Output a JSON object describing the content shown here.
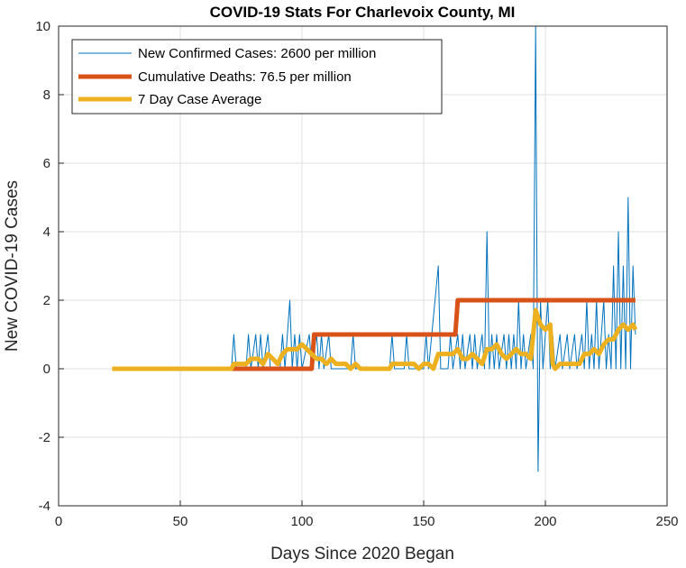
{
  "chart_data": {
    "type": "line",
    "title": "COVID-19 Stats For Charlevoix County, MI",
    "xlabel": "Days Since 2020 Began",
    "ylabel": "New COVID-19 Cases",
    "xlim": [
      0,
      250
    ],
    "ylim": [
      -4,
      10
    ],
    "xticks": [
      0,
      50,
      100,
      150,
      200,
      250
    ],
    "yticks": [
      -4,
      -2,
      0,
      2,
      4,
      6,
      8,
      10
    ],
    "grid": true,
    "legend_position": "top-left",
    "series": [
      {
        "name": "New Confirmed Cases: 2600 per million",
        "color": "#0072BD",
        "line_width": 1,
        "points": [
          [
            22,
            0
          ],
          [
            71,
            0
          ],
          [
            72,
            1
          ],
          [
            73,
            0
          ],
          [
            77,
            0
          ],
          [
            78,
            1
          ],
          [
            79,
            0
          ],
          [
            81,
            1
          ],
          [
            82,
            0
          ],
          [
            83,
            1
          ],
          [
            84,
            0
          ],
          [
            86,
            1
          ],
          [
            87,
            0
          ],
          [
            91,
            0
          ],
          [
            92,
            1
          ],
          [
            93,
            0
          ],
          [
            95,
            2
          ],
          [
            96,
            0
          ],
          [
            97,
            1
          ],
          [
            98,
            0
          ],
          [
            99,
            1
          ],
          [
            100,
            0
          ],
          [
            103,
            1
          ],
          [
            104,
            0
          ],
          [
            106,
            1
          ],
          [
            107,
            0
          ],
          [
            108,
            1
          ],
          [
            109,
            0
          ],
          [
            111,
            1
          ],
          [
            112,
            0
          ],
          [
            120,
            0
          ],
          [
            121,
            1
          ],
          [
            122,
            0
          ],
          [
            136,
            0
          ],
          [
            137,
            1
          ],
          [
            138,
            0
          ],
          [
            142,
            0
          ],
          [
            143,
            1
          ],
          [
            144,
            0
          ],
          [
            150,
            0
          ],
          [
            151,
            1
          ],
          [
            152,
            0
          ],
          [
            156,
            3
          ],
          [
            157,
            0
          ],
          [
            160,
            0
          ],
          [
            161,
            1
          ],
          [
            162,
            0
          ],
          [
            164,
            1
          ],
          [
            165,
            0
          ],
          [
            166,
            1
          ],
          [
            167,
            0
          ],
          [
            169,
            1
          ],
          [
            170,
            0
          ],
          [
            171,
            1
          ],
          [
            172,
            0
          ],
          [
            174,
            1
          ],
          [
            175,
            0
          ],
          [
            176,
            4
          ],
          [
            177,
            0
          ],
          [
            178,
            1
          ],
          [
            179,
            0
          ],
          [
            180,
            1
          ],
          [
            181,
            0
          ],
          [
            183,
            1
          ],
          [
            184,
            0
          ],
          [
            185,
            1
          ],
          [
            186,
            0
          ],
          [
            187,
            1
          ],
          [
            188,
            0
          ],
          [
            189,
            2
          ],
          [
            190,
            0
          ],
          [
            191,
            1
          ],
          [
            192,
            0
          ],
          [
            194,
            1
          ],
          [
            195,
            0
          ],
          [
            196,
            10
          ],
          [
            197,
            -3
          ],
          [
            198,
            2
          ],
          [
            199,
            0
          ],
          [
            201,
            2
          ],
          [
            202,
            0
          ],
          [
            203,
            1
          ],
          [
            204,
            0
          ],
          [
            206,
            1
          ],
          [
            207,
            0
          ],
          [
            209,
            1
          ],
          [
            210,
            0
          ],
          [
            212,
            1
          ],
          [
            213,
            0
          ],
          [
            215,
            1
          ],
          [
            216,
            0
          ],
          [
            217,
            2
          ],
          [
            218,
            0
          ],
          [
            219,
            1
          ],
          [
            220,
            0
          ],
          [
            221,
            2
          ],
          [
            222,
            0
          ],
          [
            224,
            2
          ],
          [
            225,
            0
          ],
          [
            226,
            1
          ],
          [
            227,
            0
          ],
          [
            228,
            3
          ],
          [
            229,
            0
          ],
          [
            230,
            4
          ],
          [
            231,
            0
          ],
          [
            232,
            3
          ],
          [
            233,
            0
          ],
          [
            234,
            5
          ],
          [
            235,
            0
          ],
          [
            236,
            3
          ],
          [
            237,
            1
          ]
        ]
      },
      {
        "name": "Cumulative Deaths: 76.5 per million",
        "color": "#D95319",
        "line_width": 5,
        "points": [
          [
            71,
            0
          ],
          [
            104,
            0
          ],
          [
            105,
            1
          ],
          [
            163,
            1
          ],
          [
            164,
            2
          ],
          [
            237,
            2
          ]
        ]
      },
      {
        "name": "7 Day Case Average",
        "color": "#EDB120",
        "line_width": 5,
        "points": [
          [
            22,
            0
          ],
          [
            71,
            0
          ],
          [
            72,
            0.14
          ],
          [
            77,
            0.14
          ],
          [
            79,
            0.29
          ],
          [
            82,
            0.29
          ],
          [
            84,
            0.14
          ],
          [
            86,
            0.43
          ],
          [
            88,
            0.29
          ],
          [
            90,
            0.14
          ],
          [
            92,
            0.43
          ],
          [
            94,
            0.57
          ],
          [
            96,
            0.57
          ],
          [
            98,
            0.57
          ],
          [
            100,
            0.71
          ],
          [
            102,
            0.57
          ],
          [
            104,
            0.43
          ],
          [
            106,
            0.29
          ],
          [
            108,
            0.29
          ],
          [
            110,
            0.14
          ],
          [
            112,
            0.29
          ],
          [
            114,
            0.14
          ],
          [
            116,
            0.14
          ],
          [
            118,
            0.14
          ],
          [
            120,
            0
          ],
          [
            122,
            0.14
          ],
          [
            124,
            0
          ],
          [
            136,
            0
          ],
          [
            137,
            0.14
          ],
          [
            138,
            0.14
          ],
          [
            142,
            0.14
          ],
          [
            144,
            0.14
          ],
          [
            146,
            0.14
          ],
          [
            148,
            0
          ],
          [
            150,
            0.14
          ],
          [
            152,
            0.14
          ],
          [
            154,
            0
          ],
          [
            156,
            0.43
          ],
          [
            158,
            0.43
          ],
          [
            160,
            0.43
          ],
          [
            162,
            0.43
          ],
          [
            164,
            0.57
          ],
          [
            166,
            0.29
          ],
          [
            168,
            0.29
          ],
          [
            170,
            0.43
          ],
          [
            172,
            0.29
          ],
          [
            174,
            0.14
          ],
          [
            176,
            0.57
          ],
          [
            178,
            0.57
          ],
          [
            180,
            0.71
          ],
          [
            182,
            0.43
          ],
          [
            184,
            0.29
          ],
          [
            186,
            0.43
          ],
          [
            188,
            0.57
          ],
          [
            190,
            0.43
          ],
          [
            192,
            0.43
          ],
          [
            194,
            0.29
          ],
          [
            196,
            1.71
          ],
          [
            198,
            1.29
          ],
          [
            200,
            1.14
          ],
          [
            202,
            1.29
          ],
          [
            203,
            0.14
          ],
          [
            204,
            0
          ],
          [
            206,
            0.14
          ],
          [
            208,
            0.14
          ],
          [
            210,
            0.14
          ],
          [
            212,
            0.14
          ],
          [
            214,
            0.14
          ],
          [
            216,
            0.43
          ],
          [
            218,
            0.43
          ],
          [
            220,
            0.57
          ],
          [
            222,
            0.43
          ],
          [
            224,
            0.71
          ],
          [
            226,
            0.86
          ],
          [
            228,
            0.86
          ],
          [
            230,
            1.14
          ],
          [
            232,
            1.29
          ],
          [
            234,
            1.14
          ],
          [
            236,
            1.29
          ],
          [
            237,
            1.14
          ]
        ]
      }
    ]
  }
}
